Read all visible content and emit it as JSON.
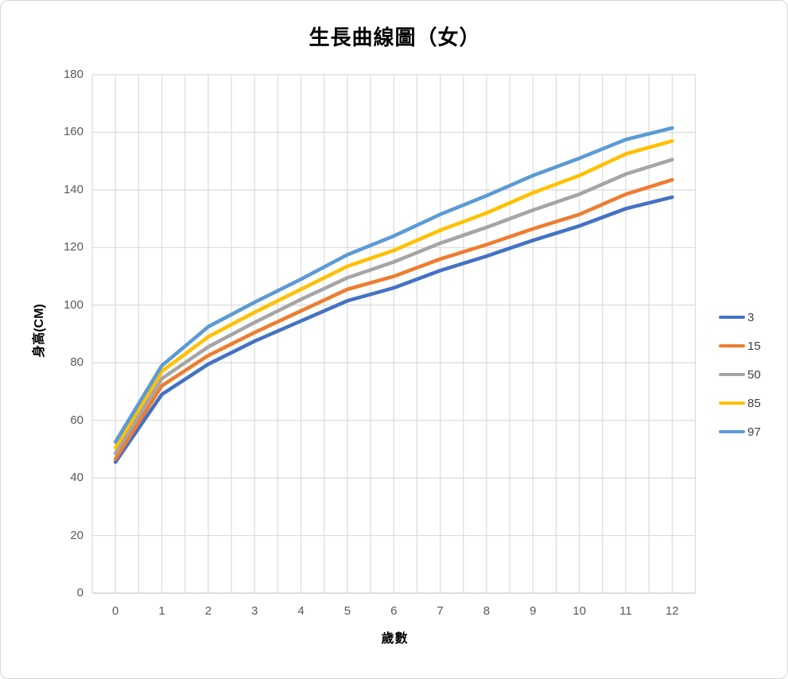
{
  "chart": {
    "title": "生長曲線圖（女）",
    "xlabel": "歲數",
    "ylabel": "身高(CM)"
  },
  "chart_data": {
    "type": "line",
    "title": "生長曲線圖（女）",
    "xlabel": "歲數",
    "ylabel": "身高(CM)",
    "categories": [
      0,
      1,
      2,
      3,
      4,
      5,
      6,
      7,
      8,
      9,
      10,
      11,
      12
    ],
    "series": [
      {
        "name": "3",
        "color": "#4472C4",
        "values": [
          45.5,
          69.0,
          79.5,
          87.5,
          94.5,
          101.5,
          106.0,
          112.0,
          117.0,
          122.5,
          127.5,
          133.5,
          137.5
        ]
      },
      {
        "name": "15",
        "color": "#ED7D31",
        "values": [
          46.5,
          72.0,
          82.5,
          90.5,
          98.0,
          105.5,
          110.0,
          116.0,
          121.0,
          126.5,
          131.5,
          138.5,
          143.5
        ]
      },
      {
        "name": "50",
        "color": "#A5A5A5",
        "values": [
          48.5,
          74.5,
          85.5,
          94.0,
          102.0,
          109.5,
          115.0,
          121.5,
          127.0,
          133.0,
          138.5,
          145.5,
          150.5
        ]
      },
      {
        "name": "85",
        "color": "#FFC000",
        "values": [
          50.5,
          77.0,
          89.0,
          97.5,
          105.5,
          113.5,
          119.0,
          126.0,
          132.0,
          139.0,
          145.0,
          152.5,
          157.0
        ]
      },
      {
        "name": "97",
        "color": "#5B9BD5",
        "values": [
          52.5,
          79.0,
          92.5,
          101.0,
          109.0,
          117.5,
          124.0,
          131.5,
          138.0,
          145.0,
          151.0,
          157.5,
          161.5
        ]
      }
    ],
    "ylim": [
      0,
      180
    ],
    "ytick_interval": 20,
    "yticks": [
      0,
      20,
      40,
      60,
      80,
      100,
      120,
      140,
      160,
      180
    ],
    "xticks": [
      0,
      1,
      2,
      3,
      4,
      5,
      6,
      7,
      8,
      9,
      10,
      11,
      12
    ],
    "grid": "horizontal major every 20; vertical lines every half category",
    "gridline_color": "#DBDBDB",
    "axis_line_color": "#C9C9C9",
    "tick_label_color": "#595959",
    "legend_position": "right",
    "legend_entries": [
      "3",
      "15",
      "50",
      "85",
      "97"
    ]
  }
}
